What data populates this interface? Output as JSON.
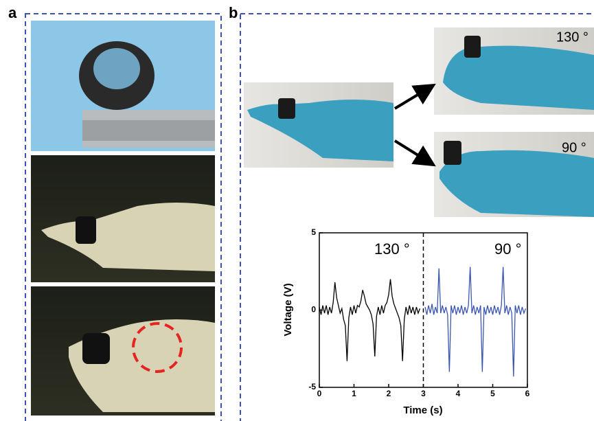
{
  "panels": {
    "a": "a",
    "b": "b"
  },
  "photo_labels": [
    "130 °",
    "90 °"
  ],
  "chart_data": {
    "type": "line",
    "annotations": [
      "130 °",
      "90 °"
    ],
    "xlabel": "Time (s)",
    "ylabel": "Voltage (V)",
    "xlim": [
      0,
      6
    ],
    "ylim": [
      -5,
      5
    ],
    "xticks": [
      0,
      1,
      2,
      3,
      4,
      5,
      6
    ],
    "yticks": [
      -5,
      0,
      5
    ],
    "vlines": [
      3
    ],
    "series": [
      {
        "color": "#000000",
        "x": [
          0,
          0.05,
          0.1,
          0.15,
          0.2,
          0.25,
          0.3,
          0.35,
          0.4,
          0.45,
          0.5,
          0.55,
          0.6,
          0.65,
          0.7,
          0.75,
          0.8,
          0.85,
          0.9,
          0.95,
          1.0,
          1.05,
          1.1,
          1.15,
          1.2,
          1.25,
          1.3,
          1.35,
          1.4,
          1.45,
          1.5,
          1.55,
          1.6,
          1.65,
          1.7,
          1.75,
          1.8,
          1.85,
          1.9,
          1.95,
          2.0,
          2.05,
          2.1,
          2.15,
          2.2,
          2.25,
          2.3,
          2.35,
          2.4,
          2.45,
          2.5,
          2.55,
          2.6,
          2.65,
          2.7,
          2.75,
          2.8,
          2.85,
          2.9
        ],
        "values": [
          0.2,
          -0.3,
          0.3,
          -0.2,
          0.3,
          -0.3,
          0.2,
          -0.2,
          0.5,
          1.8,
          0.8,
          0.3,
          -0.2,
          0.1,
          -0.6,
          -1.0,
          -3.3,
          -0.5,
          0.2,
          -0.3,
          0.3,
          -0.2,
          0.3,
          0.2,
          0.6,
          1.3,
          0.9,
          0.4,
          0.2,
          0.0,
          -0.3,
          -0.9,
          -3.0,
          -0.4,
          0.2,
          -0.3,
          0.3,
          -0.2,
          0.3,
          0.5,
          1.0,
          2.0,
          0.9,
          0.4,
          0.1,
          -0.2,
          -0.5,
          -1.0,
          -3.3,
          -0.6,
          0.2,
          -0.3,
          0.3,
          -0.2,
          0.2,
          -0.3,
          0.2,
          -0.2,
          0.1
        ]
      },
      {
        "color": "#3a56b0",
        "x": [
          3.05,
          3.1,
          3.15,
          3.2,
          3.25,
          3.3,
          3.35,
          3.4,
          3.45,
          3.5,
          3.55,
          3.6,
          3.65,
          3.7,
          3.75,
          3.8,
          3.85,
          3.9,
          3.95,
          4.0,
          4.05,
          4.1,
          4.15,
          4.2,
          4.25,
          4.3,
          4.35,
          4.4,
          4.45,
          4.5,
          4.55,
          4.6,
          4.65,
          4.7,
          4.75,
          4.8,
          4.85,
          4.9,
          4.95,
          5.0,
          5.05,
          5.1,
          5.15,
          5.2,
          5.25,
          5.3,
          5.35,
          5.4,
          5.45,
          5.5,
          5.55,
          5.6,
          5.65,
          5.7,
          5.75,
          5.8,
          5.85,
          5.9,
          5.95
        ],
        "values": [
          0.2,
          -0.3,
          0.3,
          -0.2,
          0.4,
          -0.3,
          0.2,
          -0.2,
          2.7,
          -0.2,
          0.3,
          -0.2,
          0.2,
          -0.3,
          -4.0,
          0.3,
          -0.2,
          0.3,
          -0.3,
          0.2,
          -0.2,
          0.3,
          -0.3,
          0.2,
          -0.2,
          0.3,
          2.8,
          -0.2,
          0.3,
          -0.3,
          0.2,
          -0.2,
          0.3,
          -4.0,
          0.2,
          -0.3,
          0.3,
          -0.2,
          0.2,
          -0.3,
          0.3,
          -0.2,
          0.2,
          -0.3,
          0.3,
          2.8,
          -0.2,
          0.3,
          -0.3,
          0.2,
          -0.2,
          -4.3,
          0.3,
          -0.2,
          0.3,
          -0.3,
          0.2,
          -0.2,
          0.1
        ]
      }
    ]
  }
}
